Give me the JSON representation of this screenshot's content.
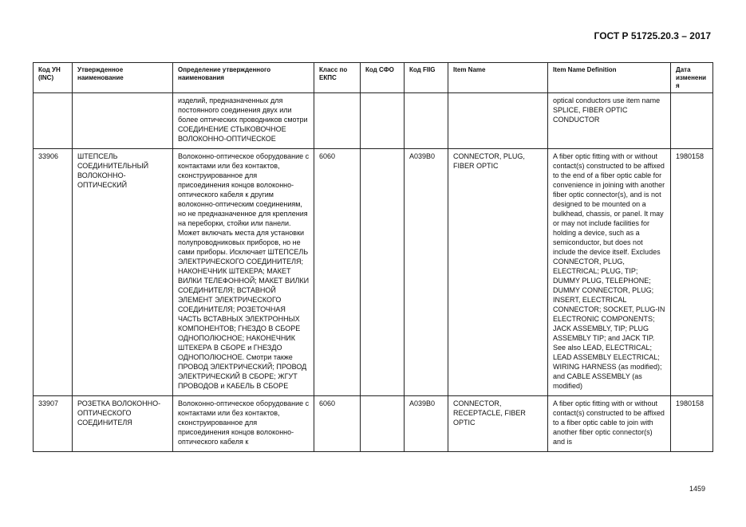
{
  "header": {
    "title": "ГОСТ Р 51725.20.3 – 2017"
  },
  "table": {
    "columns": [
      "Код УН (INC)",
      "Утвержденное наименование",
      "Определение утвержденного наименования",
      "Класс по ЕКПС",
      "Код СФО",
      "Код FIIG",
      "Item Name",
      "Item Name Definition",
      "Дата изменения"
    ],
    "rows": [
      [
        null,
        null,
        "изделий, предназначенных для постоянного соединения двух или более оптических проводников смотри СОЕДИНЕНИЕ СТЫКОВОЧНОЕ ВОЛОКОННО-ОПТИЧЕСКОЕ",
        null,
        null,
        null,
        null,
        "optical conductors use item name SPLICE, FIBER OPTIC CONDUCTOR",
        null
      ],
      [
        "33906",
        "ШТЕПСЕЛЬ СОЕДИНИТЕЛЬНЫЙ ВОЛОКОННО-ОПТИЧЕСКИЙ",
        "Волоконно-оптическое оборудование с контактами или без контактов, сконструированное для присоединения концов волоконно-оптического кабеля к другим волоконно-оптическим соединениям, но не предназначенное для крепления на переборки, стойки или панели. Может включать места для установки полупроводниковых приборов, но не сами приборы. Исключает ШТЕПСЕЛЬ ЭЛЕКТРИЧЕСКОГО СОЕДИНИТЕЛЯ; НАКОНЕЧНИК ШТЕКЕРА; МАКЕТ ВИЛКИ ТЕЛЕФОННОЙ; МАКЕТ ВИЛКИ СОЕДИНИТЕЛЯ; ВСТАВНОЙ ЭЛЕМЕНТ ЭЛЕКТРИЧЕСКОГО СОЕДИНИТЕЛЯ; РОЗЕТОЧНАЯ ЧАСТЬ ВСТАВНЫХ ЭЛЕКТРОННЫХ КОМПОНЕНТОВ; ГНЕЗДО В СБОРЕ ОДНОПОЛЮСНОЕ; НАКОНЕЧНИК ШТЕКЕРА В СБОРЕ и ГНЕЗДО ОДНОПОЛЮСНОЕ. Смотри также ПРОВОД ЭЛЕКТРИЧЕСКИЙ; ПРОВОД ЭЛЕКТРИЧЕСКИЙ В СБОРЕ; ЖГУТ ПРОВОДОВ и КАБЕЛЬ В СБОРЕ",
        "6060",
        null,
        "A039B0",
        "CONNECTOR, PLUG, FIBER OPTIC",
        "A fiber optic fitting with or without contact(s) constructed to be affixed to the end of a fiber optic cable for convenience in joining with another fiber optic connector(s), and is not designed to be mounted on a bulkhead, chassis, or panel. It may or may not include facilities for holding a device, such as a semiconductor, but does not include the device itself. Excludes CONNECTOR, PLUG, ELECTRICAL; PLUG, TIP; DUMMY PLUG, TELEPHONE; DUMMY CONNECTOR, PLUG; INSERT, ELECTRICAL CONNECTOR; SOCKET, PLUG-IN ELECTRONIC COMPONENTS; JACK ASSEMBLY, TIP; PLUG ASSEMBLY TIP; and JACK TIP. See also LEAD, ELECTRICAL; LEAD ASSEMBLY ELECTRICAL; WIRING HARNESS (as modified); and CABLE ASSEMBLY (as modified)",
        "1980158"
      ],
      [
        "33907",
        "РОЗЕТКА ВОЛОКОННО-ОПТИЧЕСКОГО СОЕДИНИТЕЛЯ",
        "Волоконно-оптическое оборудование с контактами или без контактов, сконструированное для присоединения концов волоконно-оптического кабеля к",
        "6060",
        null,
        "A039B0",
        "CONNECTOR, RECEPTACLE, FIBER OPTIC",
        "A fiber optic fitting with or without contact(s) constructed to be affixed to a fiber optic cable to join with another fiber optic connector(s) and is",
        "1980158"
      ]
    ]
  },
  "footer": {
    "page_number": "1459"
  }
}
